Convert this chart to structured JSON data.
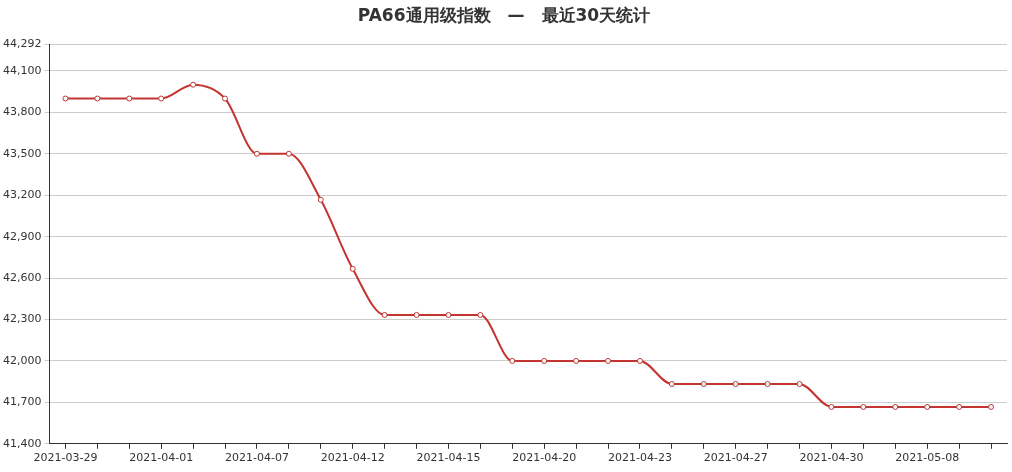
{
  "chart_data": {
    "type": "line",
    "title": "PA66通用级指数　—　最近30天统计",
    "categories": [
      "2021-03-29",
      null,
      null,
      "2021-04-01",
      null,
      null,
      "2021-04-07",
      null,
      null,
      "2021-04-12",
      null,
      null,
      "2021-04-15",
      null,
      null,
      "2021-04-20",
      null,
      null,
      "2021-04-23",
      null,
      null,
      "2021-04-27",
      null,
      null,
      "2021-04-30",
      null,
      null,
      "2021-05-08",
      null,
      null
    ],
    "series": [
      {
        "color": "#c23531",
        "values": [
          43900,
          43900,
          43900,
          43900,
          44000,
          43900,
          43500,
          43500,
          43167,
          42667,
          42333,
          42333,
          42333,
          42333,
          42000,
          42000,
          42000,
          42000,
          42000,
          41833,
          41833,
          41833,
          41833,
          41833,
          41667,
          41667,
          41667,
          41667,
          41667,
          41667
        ]
      }
    ],
    "ylim": [
      41400,
      44292
    ],
    "yticks": [
      {
        "value": 41400,
        "label": "41,400"
      },
      {
        "value": 41700,
        "label": "41,700"
      },
      {
        "value": 42000,
        "label": "42,000"
      },
      {
        "value": 42300,
        "label": "42,300"
      },
      {
        "value": 42600,
        "label": "42,600"
      },
      {
        "value": 42900,
        "label": "42,900"
      },
      {
        "value": 43200,
        "label": "43,200"
      },
      {
        "value": 43500,
        "label": "43,500"
      },
      {
        "value": 43800,
        "label": "43,800"
      },
      {
        "value": 44100,
        "label": "44,100"
      },
      {
        "value": 44292,
        "label": "44,292"
      }
    ],
    "grid": "y",
    "marker": "circle",
    "legend": false
  }
}
